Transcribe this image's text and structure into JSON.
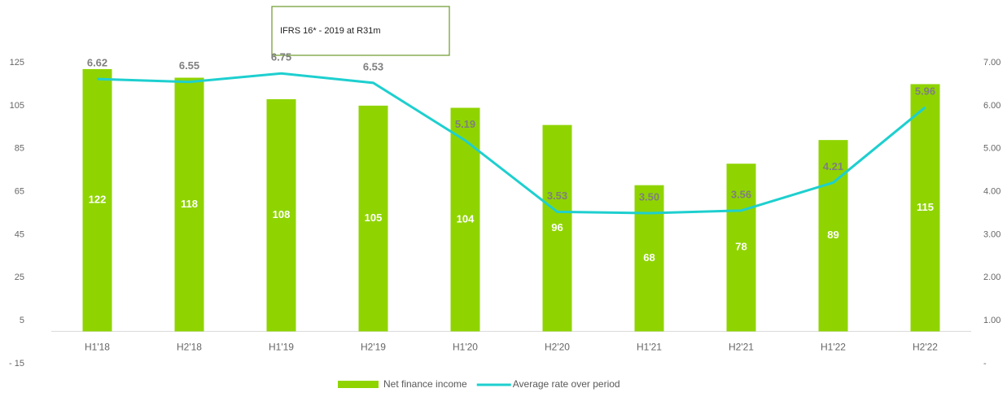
{
  "chart_data": {
    "type": "bar-line",
    "annotation": "IFRS 16* - 2019 at R31m",
    "categories": [
      "H1'18",
      "H2'18",
      "H1'19",
      "H2'19",
      "H1'20",
      "H2'20",
      "H1'21",
      "H2'21",
      "H1'22",
      "H2'22"
    ],
    "series": [
      {
        "name": "Net finance income",
        "type": "bar",
        "color": "#8fd400",
        "axis": "y",
        "values": [
          122,
          118,
          108,
          105,
          104,
          96,
          68,
          78,
          89,
          115
        ]
      },
      {
        "name": "Average rate over period",
        "type": "line",
        "color": "#1ecfcf",
        "axis": "y2",
        "values": [
          6.62,
          6.55,
          6.75,
          6.53,
          5.19,
          3.53,
          3.5,
          3.56,
          4.21,
          5.96
        ],
        "value_labels": [
          "6.62",
          "6.55",
          "6.75",
          "6.53",
          "5.19",
          "3.53",
          "3.50",
          "3.56",
          "4.21",
          "5.96"
        ]
      }
    ],
    "ylim": [
      -15,
      125
    ],
    "yticks": [
      {
        "value": -15,
        "label": "- 15"
      },
      5,
      25,
      45,
      65,
      85,
      105,
      125
    ],
    "y2lim": [
      0,
      7
    ],
    "y2ticks": [
      {
        "value": 0,
        "label": "-"
      },
      {
        "value": 1,
        "label": "1.00"
      },
      {
        "value": 2,
        "label": "2.00"
      },
      {
        "value": 3,
        "label": "3.00"
      },
      {
        "value": 4,
        "label": "4.00"
      },
      {
        "value": 5,
        "label": "5.00"
      },
      {
        "value": 6,
        "label": "6.00"
      },
      {
        "value": 7,
        "label": "7.00"
      }
    ],
    "legend": "bottom"
  }
}
